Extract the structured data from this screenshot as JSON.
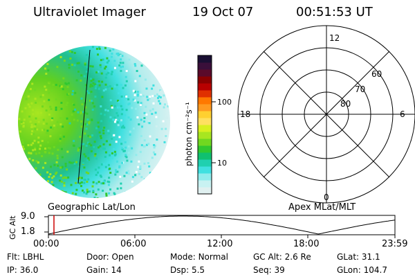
{
  "header": {
    "title": "Ultraviolet Imager",
    "date": "19 Oct 07",
    "time": "00:51:53 UT"
  },
  "colorbar": {
    "label": "photon cm⁻²s⁻¹",
    "ticks": [
      "100",
      "10"
    ],
    "colors": [
      "#1a0f33",
      "#3a0f3a",
      "#5a0a2a",
      "#8a0000",
      "#b80000",
      "#e03000",
      "#ff7800",
      "#ff9a20",
      "#ffd030",
      "#ffe060",
      "#d8f020",
      "#a8e620",
      "#70d820",
      "#30c830",
      "#10c070",
      "#20d0b0",
      "#40e0e0",
      "#90ecec",
      "#c8f2f2",
      "#e0f0f0"
    ]
  },
  "polar_grid": {
    "mlt_labels": {
      "top": "12",
      "left": "18",
      "right": "6",
      "bottom": "0"
    },
    "lat_labels": [
      "60",
      "70",
      "80"
    ]
  },
  "timeline": {
    "ylabel": "GC Alt",
    "yticks": [
      "9.0",
      "1.8"
    ],
    "left_caption": "Geographic Lat/Lon",
    "right_caption": "Apex MLat/MLT",
    "xticks": [
      "00:00",
      "06:00",
      "12:00",
      "18:00",
      "23:59"
    ],
    "marker_color": "#cc0000",
    "line_color": "#000000"
  },
  "info": {
    "row1": [
      {
        "key": "Flt:",
        "value": "LBHL"
      },
      {
        "key": "Door:",
        "value": "Open"
      },
      {
        "key": "Mode:",
        "value": "Normal"
      },
      {
        "key": "GC Alt:",
        "value": "2.6 Re"
      },
      {
        "key": "GLat:",
        "value": "31.1"
      }
    ],
    "row2": [
      {
        "key": "IP:",
        "value": "36.0"
      },
      {
        "key": "Gain:",
        "value": "14"
      },
      {
        "key": "Dsp:",
        "value": "5.5"
      },
      {
        "key": "Seq:",
        "value": "39"
      },
      {
        "key": "GLon:",
        "value": "104.7"
      }
    ]
  },
  "image": {
    "glow_colors": [
      "#a8e620",
      "#70d820",
      "#30c830",
      "#20d0b0",
      "#40e0e0",
      "#90ecec",
      "#d0f0f0"
    ]
  }
}
